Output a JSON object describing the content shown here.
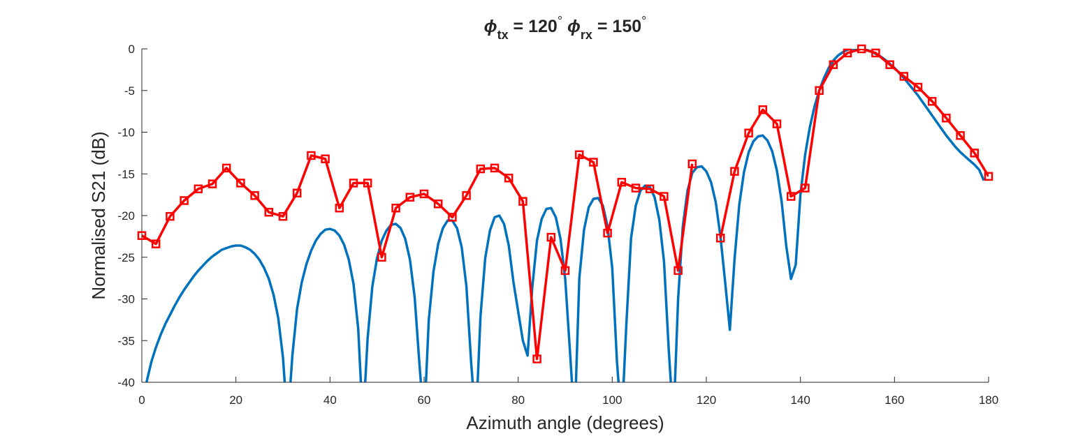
{
  "chart_data": {
    "type": "line",
    "title": [
      "ϕ",
      "tx",
      " = 120",
      "°",
      "  ϕ",
      "rx",
      " = 150",
      "°"
    ],
    "xlabel": "Azimuth angle (degrees)",
    "ylabel": "Normalised S21 (dB)",
    "xlim": [
      0,
      180
    ],
    "ylim": [
      -40,
      0
    ],
    "xticks": [
      0,
      20,
      40,
      60,
      80,
      100,
      120,
      140,
      160,
      180
    ],
    "yticks": [
      0,
      -5,
      -10,
      -15,
      -20,
      -25,
      -30,
      -35,
      -40
    ],
    "series": [
      {
        "color": "#0072bd",
        "marker": false,
        "x": [
          1,
          2,
          3,
          4,
          5,
          6,
          7,
          8,
          9,
          10,
          11,
          12,
          13,
          14,
          15,
          16,
          17,
          18,
          19,
          20,
          21,
          22,
          23,
          24,
          25,
          26,
          27,
          28,
          29,
          30,
          31,
          32,
          33,
          34,
          35,
          36,
          37,
          38,
          39,
          40,
          41,
          42,
          43,
          44,
          45,
          46,
          47,
          48,
          49,
          50,
          51,
          52,
          53,
          54,
          55,
          56,
          57,
          58,
          59,
          60,
          61,
          62,
          63,
          64,
          65,
          66,
          67,
          68,
          69,
          70,
          71,
          72,
          73,
          74,
          75,
          76,
          77,
          78,
          79,
          80,
          81,
          82,
          83,
          84,
          85,
          86,
          87,
          88,
          89,
          90,
          91,
          92,
          93,
          94,
          95,
          96,
          97,
          98,
          99,
          100,
          101,
          102,
          103,
          104,
          105,
          106,
          107,
          108,
          109,
          110,
          111,
          112,
          113,
          114,
          115,
          116,
          117,
          118,
          119,
          120,
          121,
          122,
          123,
          124,
          125,
          126,
          127,
          128,
          129,
          130,
          131,
          132,
          133,
          134,
          135,
          136,
          137,
          138,
          139,
          140,
          141,
          142,
          143,
          144,
          145,
          146,
          147,
          148,
          149,
          150,
          151,
          152,
          153,
          154,
          155,
          156,
          157,
          158,
          159,
          160,
          161,
          162,
          163,
          164,
          165,
          166,
          167,
          168,
          169,
          170,
          171,
          172,
          173,
          174,
          175,
          176,
          177,
          178,
          179
        ],
        "values": [
          -40,
          -37.6,
          -35.8,
          -34.3,
          -33.0,
          -31.9,
          -30.8,
          -29.8,
          -28.9,
          -28.1,
          -27.3,
          -26.6,
          -26.0,
          -25.4,
          -24.9,
          -24.5,
          -24.1,
          -23.9,
          -23.7,
          -23.6,
          -23.6,
          -23.8,
          -24.1,
          -24.6,
          -25.3,
          -26.3,
          -27.6,
          -29.5,
          -32.3,
          -37,
          -45,
          -36.8,
          -31.2,
          -28.0,
          -25.8,
          -24.2,
          -23.0,
          -22.2,
          -21.7,
          -21.6,
          -21.8,
          -22.4,
          -23.5,
          -25.3,
          -28.2,
          -33.6,
          -45,
          -34.7,
          -28.5,
          -25.1,
          -23.0,
          -21.8,
          -21.1,
          -21.0,
          -21.5,
          -22.8,
          -25.3,
          -29.8,
          -37.7,
          -45,
          -32.5,
          -26.7,
          -23.4,
          -21.5,
          -20.6,
          -20.6,
          -21.5,
          -23.8,
          -28.5,
          -37.6,
          -45,
          -32.0,
          -25.1,
          -21.8,
          -20.2,
          -20.0,
          -21.0,
          -23.6,
          -28.0,
          -31.5,
          -35.0,
          -36.8,
          -28.6,
          -23.0,
          -20.4,
          -19.2,
          -19.1,
          -20.2,
          -22.8,
          -27.6,
          -36.2,
          -45,
          -27.5,
          -21.7,
          -19.0,
          -18.0,
          -17.9,
          -18.8,
          -21.3,
          -26.3,
          -37.5,
          -45,
          -33.0,
          -22.7,
          -18.8,
          -17.0,
          -16.4,
          -16.6,
          -17.8,
          -20.5,
          -25.5,
          -36,
          -45,
          -30.0,
          -21.3,
          -17.0,
          -14.9,
          -14.2,
          -14.1,
          -14.7,
          -16.0,
          -18.4,
          -22.5,
          -28.0,
          -33.7,
          -25.2,
          -18.7,
          -14.8,
          -12.4,
          -11.1,
          -10.5,
          -10.4,
          -11.0,
          -12.3,
          -14.6,
          -18.3,
          -23.7,
          -27.6,
          -25.9,
          -17.5,
          -12.7,
          -9.4,
          -6.9,
          -5.0,
          -3.5,
          -2.3,
          -1.4,
          -0.8,
          -0.4,
          -0.1,
          0,
          0,
          0,
          -0.1,
          -0.3,
          -0.6,
          -0.9,
          -1.3,
          -1.8,
          -2.3,
          -2.9,
          -3.5,
          -4.2,
          -4.9,
          -5.6,
          -6.4,
          -7.2,
          -8.0,
          -8.8,
          -9.6,
          -10.4,
          -11.1,
          -11.8,
          -12.4,
          -12.9,
          -13.4,
          -13.9,
          -14.5,
          -15.8
        ]
      },
      {
        "color": "#ff0000",
        "marker": true,
        "x": [
          0,
          3,
          6,
          9,
          12,
          15,
          18,
          21,
          24,
          27,
          30,
          33,
          36,
          39,
          42,
          45,
          48,
          51,
          54,
          57,
          60,
          63,
          66,
          69,
          72,
          75,
          78,
          81,
          84,
          87,
          90,
          93,
          96,
          99,
          102,
          105,
          108,
          111,
          114,
          117,
          120,
          123,
          126,
          129,
          132,
          135,
          138,
          141,
          144,
          147,
          150,
          153,
          156,
          159,
          162,
          165,
          168,
          171,
          174,
          177,
          180
        ],
        "values": [
          -22.4,
          -23.4,
          -20.1,
          -18.2,
          -16.8,
          -16.2,
          -14.3,
          -16.1,
          -17.6,
          -19.6,
          -20.1,
          -17.3,
          -12.8,
          -13.2,
          -19.1,
          -16.1,
          -16.1,
          -25.0,
          -19.1,
          -17.8,
          -17.4,
          -18.6,
          -20.2,
          -17.6,
          -14.4,
          -14.3,
          -15.5,
          -18.3,
          -37.2,
          -22.6,
          -26.6,
          -12.7,
          -13.6,
          -22.1,
          -16.0,
          -16.7,
          -16.8,
          -17.7,
          -26.6,
          -13.8,
          null,
          -22.7,
          -14.7,
          -10.1,
          -7.3,
          -9.0,
          -17.7,
          -16.7,
          -5.0,
          -1.9,
          -0.5,
          0,
          -0.5,
          -1.9,
          -3.3,
          -4.6,
          -6.3,
          -8.3,
          -10.4,
          -12.5,
          -15.3
        ]
      }
    ]
  }
}
